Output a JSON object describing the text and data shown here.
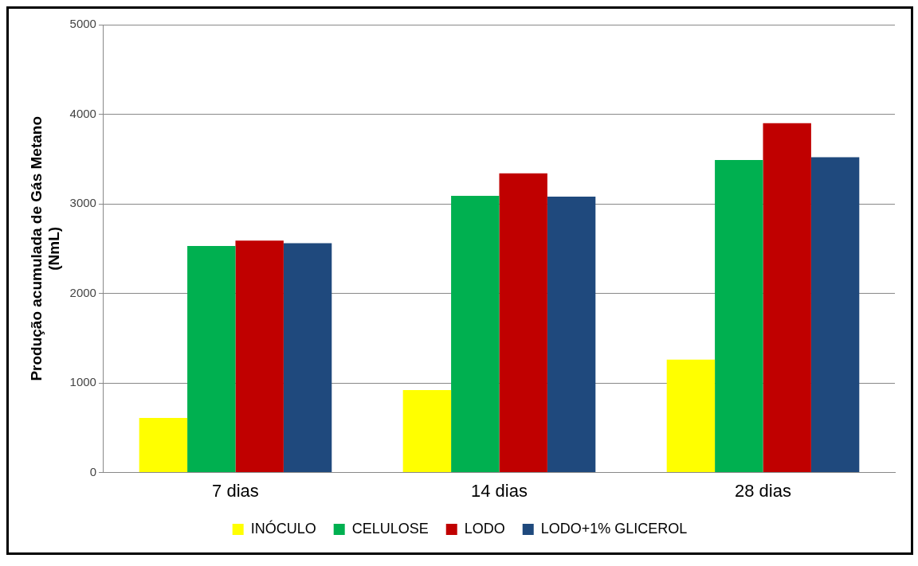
{
  "chart_data": {
    "type": "bar",
    "ylabel": "Produção acumulada de Gás Metano\n(NmL)",
    "categories": [
      "7 dias",
      "14 dias",
      "28 dias"
    ],
    "series": [
      {
        "name": "INÓCULO",
        "color": "#ffff00",
        "values": [
          610,
          920,
          1260
        ]
      },
      {
        "name": "CELULOSE",
        "color": "#00b050",
        "values": [
          2530,
          3090,
          3490
        ]
      },
      {
        "name": "LODO",
        "color": "#c00000",
        "values": [
          2590,
          3340,
          3900
        ]
      },
      {
        "name": "LODO+1% GLICEROL",
        "color": "#1f497d",
        "values": [
          2560,
          3080,
          3520
        ]
      }
    ],
    "ylim": [
      0,
      5000
    ],
    "yticks": [
      0,
      1000,
      2000,
      3000,
      4000,
      5000
    ],
    "grid": "y",
    "legend": "bottom"
  }
}
